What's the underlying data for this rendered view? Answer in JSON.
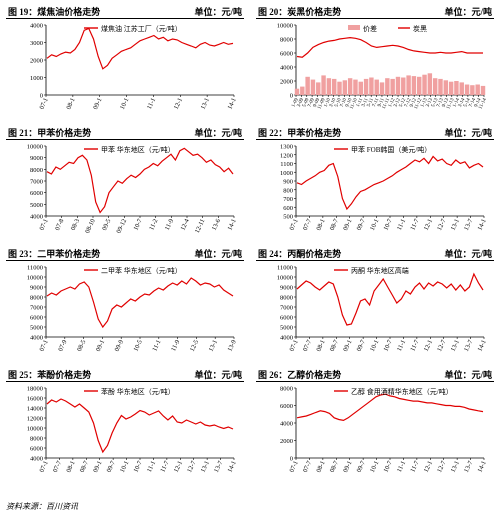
{
  "source_note": "资料来源：百川资讯",
  "chart_data": [
    {
      "type": "line",
      "figure_label": "图 19：煤焦油价格走势",
      "unit_label": "单位：元/吨",
      "legend": [
        "煤焦油 江苏工厂（元/吨）"
      ],
      "colors": {
        "line": "#e00000"
      },
      "ylim": [
        0,
        4000
      ],
      "yticks": [
        0,
        1000,
        2000,
        3000,
        4000
      ],
      "xticks": [
        "07-1",
        "08-1",
        "09-1",
        "10-1",
        "11-1",
        "12-1",
        "13-1",
        "14-1"
      ],
      "series": [
        {
          "name": "煤焦油 江苏工厂（元/吨）",
          "values": [
            2100,
            2300,
            2200,
            2350,
            2450,
            2400,
            2600,
            3000,
            3700,
            3800,
            3200,
            2200,
            1500,
            1700,
            2100,
            2300,
            2500,
            2600,
            2700,
            2900,
            3100,
            3200,
            3300,
            3400,
            3200,
            3300,
            3100,
            3200,
            3150,
            3000,
            2900,
            2800,
            2700,
            2900,
            3000,
            2850,
            2800,
            2900,
            3000,
            2900,
            2950
          ]
        }
      ]
    },
    {
      "type": "bar+line",
      "figure_label": "图 20：炭黑价格走势",
      "unit_label": "单位：元/吨",
      "legend": [
        "价差",
        "炭黑"
      ],
      "colors": {
        "bar": "#f0a0a0",
        "line": "#e00000"
      },
      "ylim": [
        0,
        10000
      ],
      "yticks": [
        0,
        2000,
        4000,
        6000,
        8000,
        10000
      ],
      "xticks": [
        "1-09",
        "3-09",
        "5-09",
        "7-09",
        "9-09",
        "11-09",
        "1-10",
        "3-10",
        "5-10",
        "7-10",
        "9-10",
        "11-10",
        "1-11",
        "3-11",
        "5-11",
        "7-11",
        "9-11",
        "11-11",
        "1-12",
        "3-12",
        "5-12",
        "7-12",
        "9-12",
        "11-12",
        "1-13",
        "3-13",
        "5-13",
        "7-13",
        "9-13",
        "11-13",
        "1-14",
        "3-14",
        "5-14",
        "7-14",
        "9-14",
        "11-14"
      ],
      "series": [
        {
          "name": "炭黑",
          "values": [
            5500,
            5400,
            6000,
            6800,
            7200,
            7500,
            7700,
            7800,
            8000,
            8100,
            8200,
            8100,
            7900,
            7500,
            7000,
            6800,
            6900,
            7000,
            7100,
            7000,
            6800,
            6500,
            6300,
            6200,
            6100,
            6000,
            6000,
            6100,
            6000,
            6000,
            6100,
            6200,
            6000,
            6000,
            6000,
            6000
          ]
        },
        {
          "name": "价差",
          "values": [
            900,
            1200,
            2600,
            2200,
            1800,
            2800,
            2400,
            2300,
            1900,
            2100,
            2400,
            2200,
            1900,
            2300,
            2500,
            2200,
            1800,
            2400,
            2300,
            2600,
            2500,
            2800,
            2700,
            2600,
            2900,
            3100,
            2400,
            2300,
            2100,
            1900,
            2000,
            1800,
            1500,
            1400,
            1500,
            1300
          ]
        }
      ]
    },
    {
      "type": "line",
      "figure_label": "图 21：甲苯价格走势",
      "unit_label": "单位：元/吨",
      "legend": [
        "甲苯 华东地区（元/吨）"
      ],
      "colors": {
        "line": "#e00000"
      },
      "ylim": [
        4000,
        10000
      ],
      "yticks": [
        4000,
        5000,
        6000,
        7000,
        8000,
        9000,
        10000
      ],
      "xticks": [
        "07-1",
        "07-8",
        "08-3",
        "08-10",
        "09-5",
        "09-12",
        "10-7",
        "11-2",
        "11-9",
        "12-4",
        "12-11",
        "13-6",
        "14-1"
      ],
      "series": [
        {
          "name": "甲苯 华东地区（元/吨）",
          "values": [
            7800,
            7600,
            8200,
            8000,
            8300,
            8600,
            8500,
            9000,
            9200,
            8800,
            7500,
            5200,
            4300,
            4800,
            6000,
            6500,
            7000,
            6800,
            7200,
            7500,
            7300,
            7600,
            8000,
            8200,
            8500,
            8300,
            8700,
            9000,
            9300,
            8800,
            9600,
            9800,
            9500,
            9200,
            9300,
            9000,
            8600,
            8800,
            8400,
            8200,
            7800,
            8100,
            7600
          ]
        }
      ]
    },
    {
      "type": "line",
      "figure_label": "图 22：甲苯价格走势",
      "unit_label": "单位：元/吨",
      "legend": [
        "甲苯 FOB韩国（美元/吨）"
      ],
      "colors": {
        "line": "#e00000"
      },
      "ylim": [
        500,
        1300
      ],
      "yticks": [
        500,
        600,
        700,
        800,
        900,
        1000,
        1100,
        1200,
        1300
      ],
      "xticks": [
        "07-1",
        "07-7",
        "08-1",
        "08-7",
        "09-1",
        "09-7",
        "10-1",
        "10-7",
        "11-1",
        "11-7",
        "12-1",
        "12-7",
        "13-1",
        "13-7",
        "14-1"
      ],
      "series": [
        {
          "name": "甲苯 FOB韩国（美元/吨）",
          "values": [
            880,
            860,
            900,
            930,
            960,
            1000,
            1020,
            1080,
            1100,
            950,
            700,
            580,
            640,
            720,
            780,
            800,
            830,
            860,
            880,
            900,
            930,
            960,
            1000,
            1030,
            1060,
            1100,
            1140,
            1120,
            1160,
            1100,
            1180,
            1130,
            1150,
            1100,
            1080,
            1140,
            1100,
            1120,
            1050,
            1080,
            1100,
            1060
          ]
        }
      ]
    },
    {
      "type": "line",
      "figure_label": "图 23：二甲苯价格走势",
      "unit_label": "单位：元/吨",
      "legend": [
        "二甲苯 华东地区（元/吨）"
      ],
      "colors": {
        "line": "#e00000"
      },
      "ylim": [
        4000,
        11000
      ],
      "yticks": [
        4000,
        5000,
        6000,
        7000,
        8000,
        9000,
        10000,
        11000
      ],
      "xticks": [
        "07-1",
        "07-9",
        "08-5",
        "09-1",
        "09-9",
        "10-5",
        "11-1",
        "11-9",
        "12-5",
        "13-1",
        "13-9"
      ],
      "series": [
        {
          "name": "二甲苯 华东地区（元/吨）",
          "values": [
            8100,
            8400,
            8200,
            8600,
            8800,
            9000,
            8800,
            9300,
            9500,
            9000,
            7500,
            5800,
            5000,
            5600,
            6800,
            7200,
            7000,
            7400,
            7800,
            7600,
            8000,
            8300,
            8200,
            8600,
            8900,
            8700,
            9100,
            9400,
            9200,
            9600,
            9300,
            9900,
            9600,
            9200,
            9400,
            9300,
            9000,
            9200,
            8700,
            8400,
            8100
          ]
        }
      ]
    },
    {
      "type": "line",
      "figure_label": "图 24：丙酮价格走势",
      "unit_label": "单位：元/吨",
      "legend": [
        "丙酮 华东地区高端"
      ],
      "colors": {
        "line": "#e00000"
      },
      "ylim": [
        4000,
        11000
      ],
      "yticks": [
        4000,
        5000,
        6000,
        7000,
        8000,
        9000,
        10000,
        11000
      ],
      "xticks": [
        "07-1",
        "07-7",
        "08-1",
        "08-7",
        "09-1",
        "09-7",
        "10-1",
        "10-7",
        "11-1",
        "11-7",
        "12-1",
        "12-7",
        "13-1",
        "13-7",
        "14-1"
      ],
      "series": [
        {
          "name": "丙酮 华东地区高端",
          "values": [
            8800,
            9200,
            9600,
            9400,
            9000,
            8700,
            9100,
            9500,
            9300,
            8000,
            6200,
            5200,
            5300,
            6400,
            7600,
            7800,
            7200,
            8600,
            9200,
            9800,
            9000,
            8200,
            7400,
            7800,
            8600,
            8300,
            9000,
            9400,
            8800,
            9400,
            9100,
            9500,
            9300,
            8900,
            9300,
            8700,
            9200,
            8600,
            9000,
            10300,
            9400,
            8700
          ]
        }
      ]
    },
    {
      "type": "line",
      "figure_label": "图 25：苯酚价格走势",
      "unit_label": "单位：元/吨",
      "legend": [
        "苯酚 华东地区（元/吨）"
      ],
      "colors": {
        "line": "#e00000"
      },
      "ylim": [
        4000,
        18000
      ],
      "yticks": [
        4000,
        6000,
        8000,
        10000,
        12000,
        14000,
        16000,
        18000
      ],
      "xticks": [
        "07-1",
        "07-7",
        "08-1",
        "08-7",
        "09-1",
        "09-7",
        "10-1",
        "10-7",
        "11-1",
        "11-7",
        "12-1",
        "12-7",
        "13-1",
        "13-7",
        "14-1"
      ],
      "series": [
        {
          "name": "苯酚 华东地区（元/吨）",
          "values": [
            14800,
            15600,
            15200,
            15800,
            15400,
            14800,
            14200,
            14800,
            14000,
            13200,
            11000,
            7500,
            5200,
            6500,
            9000,
            11000,
            12500,
            11800,
            12200,
            12800,
            13500,
            13200,
            12600,
            13000,
            13400,
            12400,
            11600,
            12400,
            11200,
            11000,
            11600,
            11200,
            10800,
            11200,
            10600,
            10400,
            10600,
            10200,
            9900,
            10200,
            9800
          ]
        }
      ]
    },
    {
      "type": "line",
      "figure_label": "图 26：乙醇价格走势",
      "unit_label": "单位：元/吨",
      "legend": [
        "乙醇 食用酒精华东地区（元/吨）"
      ],
      "colors": {
        "line": "#e00000"
      },
      "ylim": [
        0,
        8000
      ],
      "yticks": [
        0,
        2000,
        4000,
        6000,
        8000
      ],
      "xticks": [
        "07-1",
        "07-7",
        "08-1",
        "08-7",
        "09-1",
        "09-7",
        "10-1",
        "10-7",
        "11-1",
        "11-7",
        "12-1",
        "12-7",
        "13-1",
        "13-7",
        "14-1"
      ],
      "series": [
        {
          "name": "乙醇 食用酒精华东地区（元/吨）",
          "values": [
            4600,
            4700,
            4800,
            5000,
            5200,
            5400,
            5300,
            5100,
            4600,
            4400,
            4300,
            4600,
            5000,
            5400,
            5800,
            6200,
            6600,
            7000,
            7200,
            7300,
            7100,
            7000,
            6800,
            6700,
            6600,
            6500,
            6500,
            6400,
            6300,
            6300,
            6200,
            6100,
            6000,
            6000,
            5900,
            5900,
            5800,
            5600,
            5500,
            5400,
            5300
          ]
        }
      ]
    }
  ]
}
